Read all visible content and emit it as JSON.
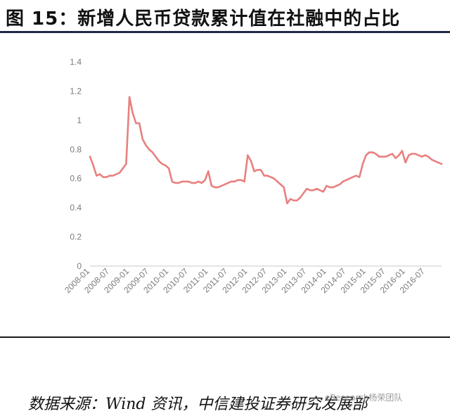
{
  "header": {
    "title": "图 15：新增人民币贷款累计值在社融中的占比"
  },
  "footer": {
    "source": "数据来源：Wind 资讯，中信建投证券研究发展部",
    "watermark": "eResearch杨荣团队"
  },
  "chart_data": {
    "type": "line",
    "title": "",
    "xlabel": "",
    "ylabel": "",
    "ylim": [
      0,
      1.4
    ],
    "yticks": [
      "0",
      "0.2",
      "0.4",
      "0.6",
      "0.8",
      "1",
      "1.2",
      "1.4"
    ],
    "xticks": [
      "2008-01",
      "2008-07",
      "2009-01",
      "2009-07",
      "2010-01",
      "2010-07",
      "2011-01",
      "2011-07",
      "2012-01",
      "2012-07",
      "2013-01",
      "2013-07",
      "2014-01",
      "2014-07",
      "2015-01",
      "2015-07",
      "2016-01",
      "2016-07"
    ],
    "grid": false,
    "legend": "none",
    "line_color": "#e8807f",
    "series": [
      {
        "x": [
          "2008-01",
          "2008-02",
          "2008-03",
          "2008-04",
          "2008-05",
          "2008-06",
          "2008-07",
          "2008-08",
          "2008-09",
          "2008-10",
          "2008-11",
          "2008-12",
          "2009-01",
          "2009-02",
          "2009-03",
          "2009-04",
          "2009-05",
          "2009-06",
          "2009-07",
          "2009-08",
          "2009-09",
          "2009-10",
          "2009-11",
          "2009-12",
          "2010-01",
          "2010-02",
          "2010-03",
          "2010-04",
          "2010-05",
          "2010-06",
          "2010-07",
          "2010-08",
          "2010-09",
          "2010-10",
          "2010-11",
          "2010-12",
          "2011-01",
          "2011-02",
          "2011-03",
          "2011-04",
          "2011-05",
          "2011-06",
          "2011-07",
          "2011-08",
          "2011-09",
          "2011-10",
          "2011-11",
          "2011-12",
          "2012-01",
          "2012-02",
          "2012-03",
          "2012-04",
          "2012-05",
          "2012-06",
          "2012-07",
          "2012-08",
          "2012-09",
          "2012-10",
          "2012-11",
          "2012-12",
          "2013-01",
          "2013-02",
          "2013-03",
          "2013-04",
          "2013-05",
          "2013-06",
          "2013-07",
          "2013-08",
          "2013-09",
          "2013-10",
          "2013-11",
          "2013-12",
          "2014-01",
          "2014-02",
          "2014-03",
          "2014-04",
          "2014-05",
          "2014-06",
          "2014-07",
          "2014-08",
          "2014-09",
          "2014-10",
          "2014-11",
          "2014-12",
          "2015-01",
          "2015-02",
          "2015-03",
          "2015-04",
          "2015-05",
          "2015-06",
          "2015-07",
          "2015-08",
          "2015-09",
          "2015-10",
          "2015-11",
          "2015-12",
          "2016-01",
          "2016-02",
          "2016-03",
          "2016-04",
          "2016-05",
          "2016-06",
          "2016-07",
          "2016-08",
          "2016-09",
          "2016-10",
          "2016-11",
          "2016-12"
        ],
        "values": [
          0.75,
          0.69,
          0.62,
          0.63,
          0.61,
          0.61,
          0.62,
          0.62,
          0.63,
          0.64,
          0.67,
          0.7,
          1.16,
          1.05,
          0.98,
          0.98,
          0.87,
          0.83,
          0.8,
          0.78,
          0.75,
          0.72,
          0.7,
          0.69,
          0.67,
          0.58,
          0.57,
          0.57,
          0.58,
          0.58,
          0.58,
          0.57,
          0.57,
          0.58,
          0.57,
          0.59,
          0.65,
          0.55,
          0.54,
          0.54,
          0.55,
          0.56,
          0.57,
          0.58,
          0.58,
          0.59,
          0.59,
          0.58,
          0.76,
          0.72,
          0.65,
          0.66,
          0.66,
          0.62,
          0.62,
          0.61,
          0.6,
          0.58,
          0.56,
          0.54,
          0.43,
          0.46,
          0.45,
          0.45,
          0.47,
          0.5,
          0.53,
          0.52,
          0.52,
          0.53,
          0.52,
          0.51,
          0.55,
          0.54,
          0.54,
          0.55,
          0.56,
          0.58,
          0.59,
          0.6,
          0.61,
          0.62,
          0.61,
          0.7,
          0.76,
          0.78,
          0.78,
          0.77,
          0.75,
          0.75,
          0.75,
          0.76,
          0.77,
          0.74,
          0.76,
          0.79,
          0.71,
          0.76,
          0.77,
          0.77,
          0.76,
          0.75,
          0.76,
          0.75,
          0.73,
          0.72,
          0.71,
          0.7
        ]
      }
    ]
  }
}
